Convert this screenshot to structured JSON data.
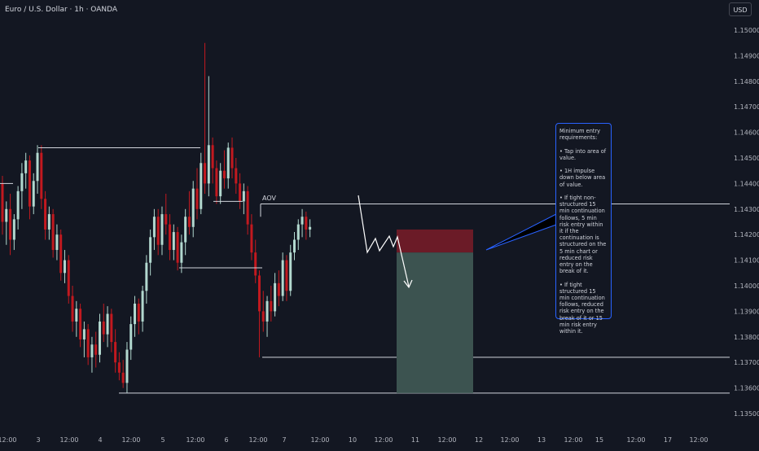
{
  "symbol": {
    "title": "Euro / U.S. Dollar · 1h · OANDA"
  },
  "toolbar": {
    "currency_label": "USD"
  },
  "colors": {
    "background": "#131722",
    "up_candle": "#b2d8cf",
    "down_candle": "#c2191f",
    "level_line": "#d1d4dc",
    "stop_zone": "#6b1b27",
    "target_zone": "#3c5350",
    "note_border": "#2962ff",
    "callout_line": "#2962ff",
    "projection_line": "#ffffff"
  },
  "annotations": {
    "aov_label": "AOV",
    "note_text": "Minimum entry requirements:\n\n• Tap into area of value.\n\n• 1H impulse down below area of value.\n\n• If tight non-structured 15 min continuation follows, 5 min risk entry within it if the continuation is structured on the 5 min chart or reduced risk entry on the break of it.\n\n• If tight structured 15 min continuation follows, reduced risk entry on the break of it or 15 min risk entry within it."
  },
  "chart_data": {
    "type": "candlestick",
    "title": "",
    "y_range": [
      1.1345,
      1.1512
    ],
    "price_axis_labels": [
      "1.15000",
      "1.14900",
      "1.14800",
      "1.14700",
      "1.14600",
      "1.14500",
      "1.14400",
      "1.14300",
      "1.14200",
      "1.14100",
      "1.14000",
      "1.13900",
      "1.13800",
      "1.13700",
      "1.13600",
      "1.13500"
    ],
    "time_axis_labels": [
      "12:00",
      "3",
      "12:00",
      "4",
      "12:00",
      "5",
      "12:00",
      "6",
      "12:00",
      "7",
      "12:00",
      "10",
      "12:00",
      "11",
      "12:00",
      "12",
      "12:00",
      "13",
      "12:00",
      "15",
      "12:00",
      "17",
      "12:00"
    ],
    "horizontal_levels": [
      {
        "name": "level-1-14400",
        "price": 1.144
      },
      {
        "name": "level-1-14540",
        "price": 1.1454
      },
      {
        "name": "level-1-14330",
        "price": 1.1433
      },
      {
        "name": "level-1-14070",
        "price": 1.1407
      },
      {
        "name": "aov-level",
        "price": 1.1432
      },
      {
        "name": "level-1-13720",
        "price": 1.1372
      },
      {
        "name": "level-1-13580",
        "price": 1.1358
      }
    ],
    "position": {
      "entry": 1.1413,
      "stop": 1.1422,
      "target": 1.1358
    },
    "candles": [
      {
        "o": 1.144,
        "h": 1.1443,
        "l": 1.142,
        "c": 1.1425
      },
      {
        "o": 1.1425,
        "h": 1.1433,
        "l": 1.1416,
        "c": 1.143
      },
      {
        "o": 1.143,
        "h": 1.1436,
        "l": 1.1412,
        "c": 1.1418
      },
      {
        "o": 1.1418,
        "h": 1.1428,
        "l": 1.1414,
        "c": 1.1426
      },
      {
        "o": 1.1426,
        "h": 1.1439,
        "l": 1.1422,
        "c": 1.1437
      },
      {
        "o": 1.1437,
        "h": 1.1448,
        "l": 1.143,
        "c": 1.1444
      },
      {
        "o": 1.1444,
        "h": 1.1452,
        "l": 1.1438,
        "c": 1.1449
      },
      {
        "o": 1.1449,
        "h": 1.1451,
        "l": 1.1426,
        "c": 1.1431
      },
      {
        "o": 1.1431,
        "h": 1.1444,
        "l": 1.1428,
        "c": 1.1441
      },
      {
        "o": 1.1441,
        "h": 1.1455,
        "l": 1.1436,
        "c": 1.1452
      },
      {
        "o": 1.1452,
        "h": 1.1455,
        "l": 1.143,
        "c": 1.1434
      },
      {
        "o": 1.1434,
        "h": 1.1437,
        "l": 1.1418,
        "c": 1.1422
      },
      {
        "o": 1.1422,
        "h": 1.1431,
        "l": 1.1418,
        "c": 1.1428
      },
      {
        "o": 1.1428,
        "h": 1.143,
        "l": 1.1411,
        "c": 1.1414
      },
      {
        "o": 1.1414,
        "h": 1.1424,
        "l": 1.141,
        "c": 1.142
      },
      {
        "o": 1.142,
        "h": 1.1422,
        "l": 1.1402,
        "c": 1.1405
      },
      {
        "o": 1.1405,
        "h": 1.1414,
        "l": 1.1401,
        "c": 1.141
      },
      {
        "o": 1.141,
        "h": 1.1412,
        "l": 1.1393,
        "c": 1.1396
      },
      {
        "o": 1.1396,
        "h": 1.14,
        "l": 1.1382,
        "c": 1.1386
      },
      {
        "o": 1.1386,
        "h": 1.1394,
        "l": 1.138,
        "c": 1.1391
      },
      {
        "o": 1.1391,
        "h": 1.1393,
        "l": 1.1376,
        "c": 1.1379
      },
      {
        "o": 1.1379,
        "h": 1.1386,
        "l": 1.1372,
        "c": 1.1383
      },
      {
        "o": 1.1383,
        "h": 1.1385,
        "l": 1.1369,
        "c": 1.1372
      },
      {
        "o": 1.1372,
        "h": 1.138,
        "l": 1.1366,
        "c": 1.1377
      },
      {
        "o": 1.1377,
        "h": 1.1382,
        "l": 1.1368,
        "c": 1.1373
      },
      {
        "o": 1.1373,
        "h": 1.1389,
        "l": 1.137,
        "c": 1.1386
      },
      {
        "o": 1.1386,
        "h": 1.1393,
        "l": 1.1378,
        "c": 1.1381
      },
      {
        "o": 1.1381,
        "h": 1.1392,
        "l": 1.1376,
        "c": 1.1389
      },
      {
        "o": 1.1389,
        "h": 1.1391,
        "l": 1.1374,
        "c": 1.1378
      },
      {
        "o": 1.1378,
        "h": 1.1383,
        "l": 1.1366,
        "c": 1.137
      },
      {
        "o": 1.137,
        "h": 1.1374,
        "l": 1.1363,
        "c": 1.1366
      },
      {
        "o": 1.1366,
        "h": 1.1371,
        "l": 1.136,
        "c": 1.1362
      },
      {
        "o": 1.1362,
        "h": 1.1378,
        "l": 1.1358,
        "c": 1.1375
      },
      {
        "o": 1.1375,
        "h": 1.1388,
        "l": 1.1371,
        "c": 1.1385
      },
      {
        "o": 1.1385,
        "h": 1.1396,
        "l": 1.138,
        "c": 1.1393
      },
      {
        "o": 1.1393,
        "h": 1.1395,
        "l": 1.1381,
        "c": 1.1386
      },
      {
        "o": 1.1386,
        "h": 1.14,
        "l": 1.1382,
        "c": 1.1398
      },
      {
        "o": 1.1398,
        "h": 1.1412,
        "l": 1.1393,
        "c": 1.1409
      },
      {
        "o": 1.1409,
        "h": 1.1422,
        "l": 1.1404,
        "c": 1.1419
      },
      {
        "o": 1.1419,
        "h": 1.143,
        "l": 1.1414,
        "c": 1.1427
      },
      {
        "o": 1.1427,
        "h": 1.143,
        "l": 1.1412,
        "c": 1.1416
      },
      {
        "o": 1.1416,
        "h": 1.1431,
        "l": 1.1412,
        "c": 1.1428
      },
      {
        "o": 1.1428,
        "h": 1.1436,
        "l": 1.142,
        "c": 1.1424
      },
      {
        "o": 1.1424,
        "h": 1.1428,
        "l": 1.141,
        "c": 1.1414
      },
      {
        "o": 1.1414,
        "h": 1.1424,
        "l": 1.141,
        "c": 1.1421
      },
      {
        "o": 1.1421,
        "h": 1.1423,
        "l": 1.1406,
        "c": 1.1409
      },
      {
        "o": 1.1409,
        "h": 1.142,
        "l": 1.1405,
        "c": 1.1417
      },
      {
        "o": 1.1417,
        "h": 1.143,
        "l": 1.1412,
        "c": 1.1427
      },
      {
        "o": 1.1427,
        "h": 1.1437,
        "l": 1.142,
        "c": 1.1423
      },
      {
        "o": 1.1423,
        "h": 1.1441,
        "l": 1.1419,
        "c": 1.1438
      },
      {
        "o": 1.1438,
        "h": 1.1446,
        "l": 1.1426,
        "c": 1.143
      },
      {
        "o": 1.143,
        "h": 1.1452,
        "l": 1.1428,
        "c": 1.1448
      },
      {
        "o": 1.1448,
        "h": 1.1495,
        "l": 1.1436,
        "c": 1.144
      },
      {
        "o": 1.144,
        "h": 1.1482,
        "l": 1.1435,
        "c": 1.1455
      },
      {
        "o": 1.1455,
        "h": 1.1458,
        "l": 1.144,
        "c": 1.1446
      },
      {
        "o": 1.1446,
        "h": 1.1449,
        "l": 1.1432,
        "c": 1.1435
      },
      {
        "o": 1.1435,
        "h": 1.1448,
        "l": 1.1432,
        "c": 1.1445
      },
      {
        "o": 1.1445,
        "h": 1.1453,
        "l": 1.1438,
        "c": 1.1442
      },
      {
        "o": 1.1442,
        "h": 1.1456,
        "l": 1.1438,
        "c": 1.1454
      },
      {
        "o": 1.1454,
        "h": 1.1458,
        "l": 1.1442,
        "c": 1.1446
      },
      {
        "o": 1.1446,
        "h": 1.145,
        "l": 1.1436,
        "c": 1.144
      },
      {
        "o": 1.144,
        "h": 1.1444,
        "l": 1.143,
        "c": 1.1433
      },
      {
        "o": 1.1433,
        "h": 1.144,
        "l": 1.1428,
        "c": 1.1437
      },
      {
        "o": 1.1437,
        "h": 1.1439,
        "l": 1.142,
        "c": 1.1424
      },
      {
        "o": 1.1424,
        "h": 1.1428,
        "l": 1.141,
        "c": 1.1413
      },
      {
        "o": 1.1413,
        "h": 1.1418,
        "l": 1.1401,
        "c": 1.1404
      },
      {
        "o": 1.1404,
        "h": 1.1406,
        "l": 1.1372,
        "c": 1.139
      },
      {
        "o": 1.139,
        "h": 1.1398,
        "l": 1.1382,
        "c": 1.1386
      },
      {
        "o": 1.1386,
        "h": 1.1396,
        "l": 1.138,
        "c": 1.1394
      },
      {
        "o": 1.1394,
        "h": 1.14,
        "l": 1.1386,
        "c": 1.139
      },
      {
        "o": 1.139,
        "h": 1.1405,
        "l": 1.1388,
        "c": 1.1401
      },
      {
        "o": 1.1401,
        "h": 1.1406,
        "l": 1.1392,
        "c": 1.1396
      },
      {
        "o": 1.1396,
        "h": 1.1413,
        "l": 1.1394,
        "c": 1.141
      },
      {
        "o": 1.141,
        "h": 1.1412,
        "l": 1.1394,
        "c": 1.1398
      },
      {
        "o": 1.1398,
        "h": 1.1416,
        "l": 1.1396,
        "c": 1.1413
      },
      {
        "o": 1.1413,
        "h": 1.1421,
        "l": 1.141,
        "c": 1.1418
      },
      {
        "o": 1.1418,
        "h": 1.1426,
        "l": 1.1414,
        "c": 1.1424
      },
      {
        "o": 1.1424,
        "h": 1.143,
        "l": 1.1419,
        "c": 1.1427
      },
      {
        "o": 1.1427,
        "h": 1.1429,
        "l": 1.1418,
        "c": 1.1422
      },
      {
        "o": 1.1422,
        "h": 1.1426,
        "l": 1.1419,
        "c": 1.1423
      }
    ]
  }
}
